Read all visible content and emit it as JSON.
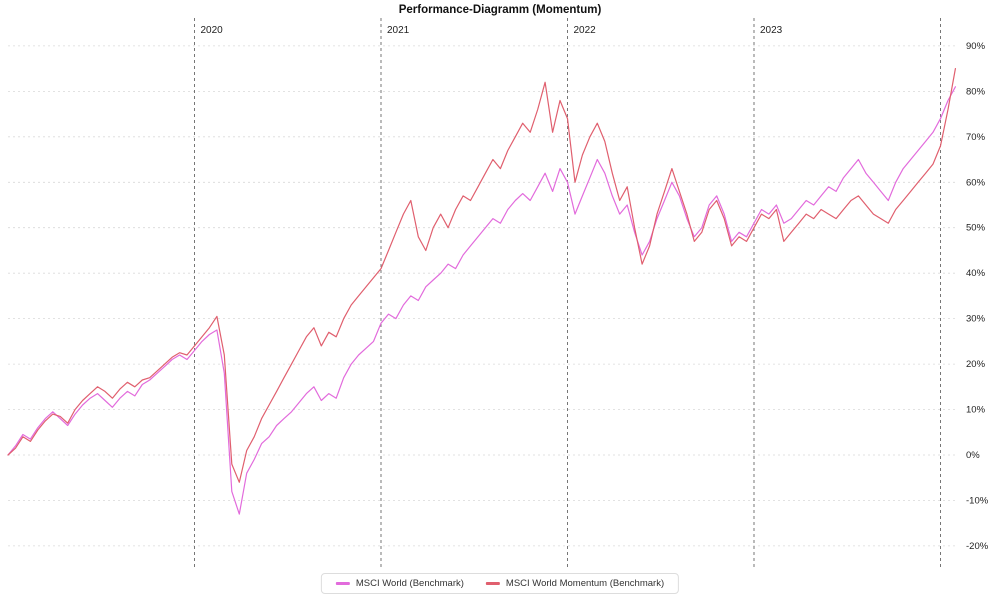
{
  "chart_data": {
    "type": "line",
    "title": "Performance-Diagramm (Momentum)",
    "x_unit": "year",
    "x_start": 2019.0,
    "x_step": 0.04,
    "ylim": [
      -25,
      95
    ],
    "grid": true,
    "legend_position": "bottom-center",
    "yticks": [
      {
        "value": 90,
        "label": "90%"
      },
      {
        "value": 80,
        "label": "80%"
      },
      {
        "value": 70,
        "label": "70%"
      },
      {
        "value": 60,
        "label": "60%"
      },
      {
        "value": 50,
        "label": "50%"
      },
      {
        "value": 40,
        "label": "40%"
      },
      {
        "value": 30,
        "label": "30%"
      },
      {
        "value": 20,
        "label": "20%"
      },
      {
        "value": 10,
        "label": "10%"
      },
      {
        "value": 0,
        "label": "0%"
      },
      {
        "value": -10,
        "label": "-10%"
      },
      {
        "value": -20,
        "label": "-20%"
      }
    ],
    "xticks": [
      {
        "value": 2020,
        "label": "2020"
      },
      {
        "value": 2021,
        "label": "2021"
      },
      {
        "value": 2022,
        "label": "2022"
      },
      {
        "value": 2023,
        "label": "2023"
      },
      {
        "value": 2024,
        "label": ""
      }
    ],
    "series": [
      {
        "name": "MSCI World (Benchmark)",
        "color": "#e26bdc",
        "values": [
          0,
          2,
          4.5,
          3.5,
          6,
          8,
          9.5,
          8,
          6.5,
          9,
          11,
          12.5,
          13.5,
          12,
          10.5,
          12.5,
          14,
          13,
          15.5,
          16.5,
          18,
          19.5,
          21,
          22,
          21,
          23,
          25,
          26.5,
          27.5,
          18,
          -8,
          -13,
          -4,
          -1,
          2.5,
          4,
          6.5,
          8,
          9.5,
          11.5,
          13.5,
          15,
          12,
          13.5,
          12.5,
          17,
          20,
          22,
          23.5,
          25,
          29,
          31,
          30,
          33,
          35,
          34,
          37,
          38.5,
          40,
          42,
          41,
          44,
          46,
          48,
          50,
          52,
          51,
          54,
          56,
          57.5,
          56,
          59,
          62,
          58,
          63,
          60,
          53,
          57,
          61,
          65,
          62,
          57,
          53,
          55,
          49,
          44,
          47,
          52,
          56,
          60,
          57,
          52,
          48,
          50,
          55,
          57,
          53,
          47,
          49,
          48,
          51,
          54,
          53,
          55,
          51,
          52,
          54,
          56,
          55,
          57,
          59,
          58,
          61,
          63,
          65,
          62,
          60,
          58,
          56,
          60,
          63,
          65,
          67,
          69,
          71,
          74,
          78,
          81
        ]
      },
      {
        "name": "MSCI World Momentum (Benchmark)",
        "color": "#e05f6e",
        "values": [
          0,
          1.5,
          4,
          3,
          5.5,
          7.5,
          9,
          8.5,
          7,
          10,
          12,
          13.5,
          15,
          14,
          12.5,
          14.5,
          16,
          15,
          16.5,
          17,
          18.5,
          20,
          21.5,
          22.5,
          22,
          24,
          26,
          28,
          30.5,
          22,
          -2,
          -6,
          1,
          4,
          8,
          11,
          14,
          17,
          20,
          23,
          26,
          28,
          24,
          27,
          26,
          30,
          33,
          35,
          37,
          39,
          41,
          45,
          49,
          53,
          56,
          48,
          45,
          50,
          53,
          50,
          54,
          57,
          56,
          59,
          62,
          65,
          63,
          67,
          70,
          73,
          71,
          76,
          82,
          71,
          78,
          74,
          60,
          66,
          70,
          73,
          69,
          62,
          56,
          59,
          50,
          42,
          46,
          53,
          58,
          63,
          58,
          53,
          47,
          49,
          54,
          56,
          52,
          46,
          48,
          47,
          50,
          53,
          52,
          54,
          47,
          49,
          51,
          53,
          52,
          54,
          53,
          52,
          54,
          56,
          57,
          55,
          53,
          52,
          51,
          54,
          56,
          58,
          60,
          62,
          64,
          68,
          76,
          85
        ]
      }
    ]
  }
}
